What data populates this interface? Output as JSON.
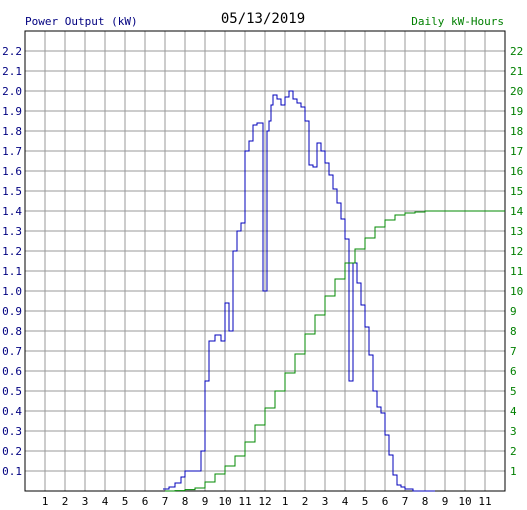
{
  "chart_data": {
    "type": "line",
    "title": "05/13/2019",
    "ylabel_left": "Power Output (kW)",
    "ylabel_right": "Daily kW-Hours",
    "xlim": [
      0,
      24
    ],
    "ylim_left": [
      0,
      2.3
    ],
    "ylim_right": [
      0,
      23
    ],
    "x_tick_labels": [
      "1",
      "2",
      "3",
      "4",
      "5",
      "6",
      "7",
      "8",
      "9",
      "10",
      "11",
      "12",
      "1",
      "2",
      "3",
      "4",
      "5",
      "6",
      "7",
      "8",
      "9",
      "10",
      "11"
    ],
    "y_left_ticks": [
      "0.1",
      "0.2",
      "0.3",
      "0.4",
      "0.5",
      "0.6",
      "0.7",
      "0.8",
      "0.9",
      "1.0",
      "1.1",
      "1.2",
      "1.3",
      "1.4",
      "1.5",
      "1.6",
      "1.7",
      "1.8",
      "1.9",
      "2.0",
      "2.1",
      "2.2"
    ],
    "y_right_ticks": [
      "1",
      "2",
      "3",
      "4",
      "5",
      "6",
      "7",
      "8",
      "9",
      "10",
      "11",
      "12",
      "13",
      "14",
      "15",
      "16",
      "17",
      "18",
      "19",
      "20",
      "21",
      "22"
    ],
    "grid": true,
    "colors": {
      "power": "#0000bb",
      "energy": "#008800",
      "grid": "#999999",
      "left_axis_text": "#000080",
      "right_axis_text": "#008000",
      "title_text": "#000000"
    },
    "series": [
      {
        "name": "Power Output (kW)",
        "axis": "left",
        "x": [
          6.9,
          7.2,
          7.5,
          7.8,
          8.0,
          8.3,
          8.6,
          8.8,
          9.0,
          9.2,
          9.5,
          9.8,
          10.0,
          10.2,
          10.4,
          10.6,
          10.8,
          11.0,
          11.2,
          11.4,
          11.6,
          11.9,
          12.1,
          12.2,
          12.3,
          12.4,
          12.6,
          12.8,
          13.0,
          13.2,
          13.4,
          13.6,
          13.8,
          14.0,
          14.2,
          14.4,
          14.6,
          14.8,
          15.0,
          15.2,
          15.4,
          15.6,
          15.8,
          16.0,
          16.2,
          16.4,
          16.6,
          16.8,
          17.0,
          17.2,
          17.4,
          17.6,
          17.8,
          18.0,
          18.2,
          18.4,
          18.6,
          18.8,
          19.0,
          19.2,
          19.4,
          19.6,
          19.8,
          20.0,
          20.3,
          20.5
        ],
        "y": [
          0.01,
          0.02,
          0.04,
          0.07,
          0.1,
          0.1,
          0.1,
          0.2,
          0.55,
          0.75,
          0.78,
          0.75,
          0.94,
          0.8,
          1.2,
          1.3,
          1.34,
          1.7,
          1.75,
          1.83,
          1.84,
          1.0,
          1.8,
          1.85,
          1.93,
          1.98,
          1.96,
          1.93,
          1.97,
          2.0,
          1.96,
          1.94,
          1.92,
          1.85,
          1.63,
          1.62,
          1.74,
          1.7,
          1.64,
          1.58,
          1.51,
          1.44,
          1.36,
          1.26,
          0.55,
          1.14,
          1.04,
          0.93,
          0.82,
          0.68,
          0.5,
          0.42,
          0.39,
          0.28,
          0.18,
          0.08,
          0.03,
          0.02,
          0.01,
          0.01,
          0.0,
          0.0,
          0.0,
          0.0,
          0.0,
          0.0
        ]
      },
      {
        "name": "Daily kW-Hours",
        "axis": "right",
        "x": [
          7.0,
          7.5,
          8.0,
          8.5,
          9.0,
          9.5,
          10.0,
          10.5,
          11.0,
          11.5,
          12.0,
          12.5,
          13.0,
          13.5,
          14.0,
          14.5,
          15.0,
          15.5,
          16.0,
          16.5,
          17.0,
          17.5,
          18.0,
          18.5,
          19.0,
          19.5,
          20.0,
          21.0,
          22.0,
          23.0,
          24.0
        ],
        "y": [
          0.0,
          0.02,
          0.07,
          0.15,
          0.45,
          0.85,
          1.25,
          1.75,
          2.45,
          3.3,
          4.15,
          5.0,
          5.9,
          6.85,
          7.85,
          8.8,
          9.75,
          10.6,
          11.4,
          12.1,
          12.65,
          13.2,
          13.55,
          13.8,
          13.9,
          13.95,
          14.0,
          14.0,
          14.0,
          14.0,
          14.0
        ]
      }
    ]
  }
}
